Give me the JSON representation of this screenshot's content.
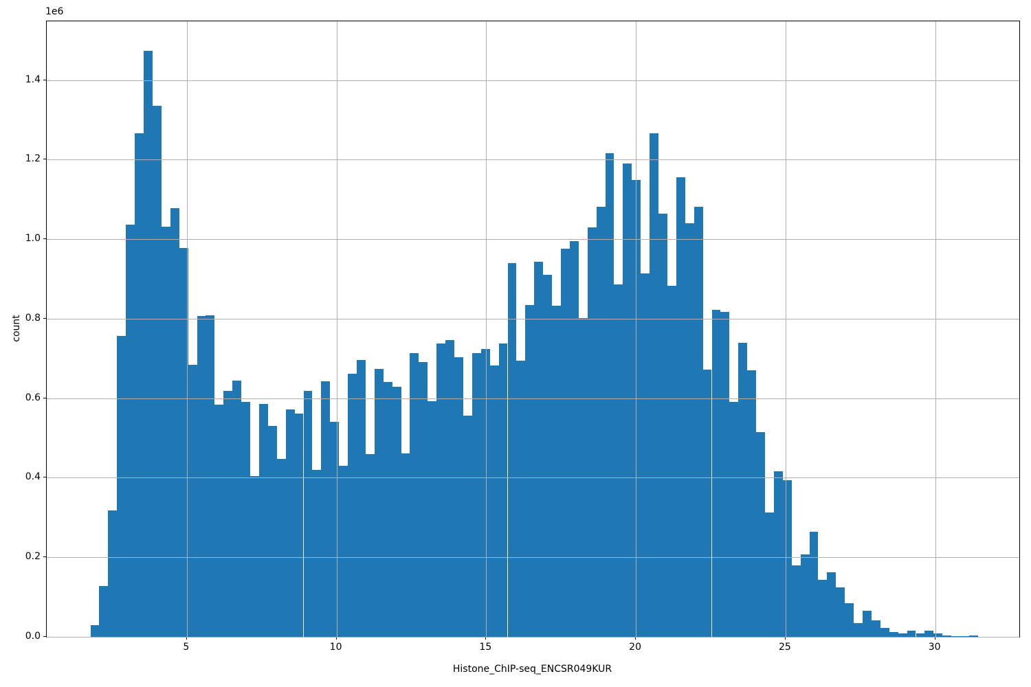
{
  "chart_data": {
    "type": "bar",
    "subtype": "histogram",
    "title": "",
    "xlabel": "Histone_ChIP-seq_ENCSR049KUR",
    "ylabel": "count",
    "y_offset_text": "1e6",
    "y_unit_scale": 1000000,
    "legend_position": "none",
    "grid": true,
    "x_ticks": [
      5,
      10,
      15,
      20,
      25,
      30
    ],
    "x_tick_labels": [
      "5",
      "10",
      "15",
      "20",
      "25",
      "30"
    ],
    "y_ticks": [
      0.0,
      0.2,
      0.4,
      0.6,
      0.8,
      1.0,
      1.2,
      1.4
    ],
    "y_tick_labels": [
      "0.0",
      "0.2",
      "0.4",
      "0.6",
      "0.8",
      "1.0",
      "1.2",
      "1.4"
    ],
    "xlim": [
      0.32,
      32.81
    ],
    "ylim": [
      0,
      1.5477
    ],
    "bin_start": 1.78,
    "bin_width": 0.2965,
    "values_1e6": [
      0.03,
      0.127,
      0.318,
      0.756,
      1.036,
      1.266,
      1.474,
      1.335,
      1.031,
      1.078,
      0.977,
      0.684,
      0.807,
      0.809,
      0.584,
      0.619,
      0.645,
      0.591,
      0.405,
      0.585,
      0.531,
      0.448,
      0.572,
      0.561,
      0.618,
      0.419,
      0.643,
      0.54,
      0.43,
      0.662,
      0.697,
      0.459,
      0.673,
      0.641,
      0.629,
      0.462,
      0.714,
      0.691,
      0.592,
      0.737,
      0.746,
      0.703,
      0.557,
      0.714,
      0.723,
      0.682,
      0.737,
      0.94,
      0.694,
      0.834,
      0.944,
      0.91,
      0.832,
      0.976,
      0.995,
      0.802,
      1.03,
      1.082,
      1.216,
      0.886,
      1.19,
      1.149,
      0.914,
      1.266,
      1.064,
      0.883,
      1.155,
      1.04,
      1.081,
      0.672,
      0.822,
      0.817,
      0.59,
      0.739,
      0.671,
      0.515,
      0.313,
      0.416,
      0.393,
      0.179,
      0.208,
      0.264,
      0.143,
      0.162,
      0.125,
      0.085,
      0.035,
      0.066,
      0.042,
      0.023,
      0.012,
      0.009,
      0.015,
      0.009,
      0.016,
      0.009,
      0.003,
      0.001,
      0.001,
      0.004
    ],
    "bar_color": "#1f77b4",
    "grid_color": "#b0b0b0",
    "axis_color": "#000000",
    "background_color": "#ffffff"
  }
}
